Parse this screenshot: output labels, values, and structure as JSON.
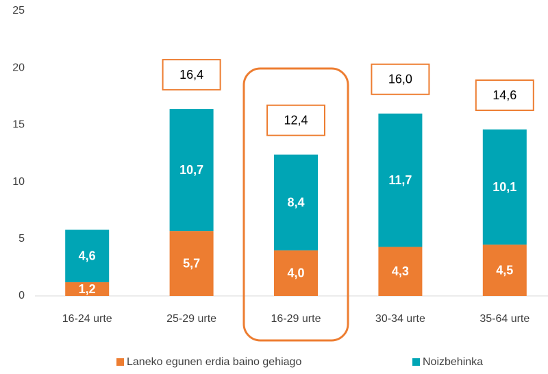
{
  "chart_data": {
    "type": "stacked_bar",
    "categories": [
      "16-24 urte",
      "25-29 urte",
      "16-29 urte",
      "30-34 urte",
      "35-64 urte"
    ],
    "series": [
      {
        "name": "Laneko egunen erdia baino gehiago",
        "color": "#ed7d31",
        "values": [
          1.2,
          5.7,
          4.0,
          4.3,
          4.5
        ],
        "value_labels": [
          "1,2",
          "5,7",
          "4,0",
          "4,3",
          "4,5"
        ]
      },
      {
        "name": "Noizbehinka",
        "color": "#00a5b5",
        "values": [
          4.6,
          10.7,
          8.4,
          11.7,
          10.1
        ],
        "value_labels": [
          "4,6",
          "10,7",
          "8,4",
          "11,7",
          "10,1"
        ]
      }
    ],
    "totals": {
      "values": [
        null,
        16.4,
        12.4,
        16.0,
        14.6
      ],
      "value_labels": [
        null,
        "16,4",
        "12,4",
        "16,0",
        "14,6"
      ],
      "color": "#ed7d31"
    },
    "ylim": [
      0,
      25
    ],
    "yticks": [
      0,
      5,
      10,
      15,
      20,
      25
    ],
    "grid": false,
    "highlight_category": 2
  }
}
